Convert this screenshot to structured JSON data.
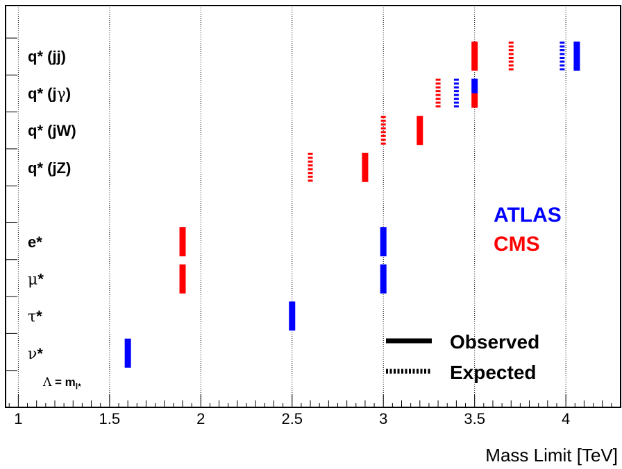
{
  "chart_data": {
    "type": "range-markers",
    "xlabel": "Mass Limit [TeV]",
    "xlim": [
      0.93,
      4.3
    ],
    "x_ticks": [
      1,
      1.5,
      2,
      2.5,
      3,
      3.5,
      4
    ],
    "x_tick_labels": [
      "1",
      "1.5",
      "2",
      "2.5",
      "3",
      "3.5",
      "4"
    ],
    "grid_x": true,
    "categories": [
      {
        "key": "qjj",
        "prefix": "q* (",
        "greek": "",
        "suffix": "jj)",
        "font": "bold",
        "row": 0
      },
      {
        "key": "qjg",
        "prefix": "q* (j",
        "greek": "γ",
        "suffix": ")",
        "font": "bold",
        "row": 1
      },
      {
        "key": "qjw",
        "prefix": "q* (jW)",
        "greek": "",
        "suffix": "",
        "font": "bold",
        "row": 2
      },
      {
        "key": "qjz",
        "prefix": "q* (jZ)",
        "greek": "",
        "suffix": "",
        "font": "bold",
        "row": 3
      },
      {
        "key": "e",
        "prefix": "e*",
        "greek": "",
        "suffix": "",
        "font": "bold",
        "row": 5
      },
      {
        "key": "mu",
        "prefix": "",
        "greek": "μ",
        "suffix": "*",
        "font": "greek",
        "row": 6
      },
      {
        "key": "tau",
        "prefix": "",
        "greek": "τ",
        "suffix": "*",
        "font": "greek",
        "row": 7
      },
      {
        "key": "nu",
        "prefix": "",
        "greek": "ν",
        "suffix": "*",
        "font": "greek",
        "row": 8
      }
    ],
    "series": [
      {
        "name": "ATLAS",
        "color": "#0000ff",
        "observed": {
          "qjj": 4.06,
          "qjg": 3.5,
          "e": 3.0,
          "mu": 3.0,
          "tau": 2.5,
          "nu": 1.6
        },
        "expected": {
          "qjj": 3.98,
          "qjg": 3.4
        }
      },
      {
        "name": "CMS",
        "color": "#ff0000",
        "observed": {
          "qjj": 3.5,
          "qjg": 3.5,
          "qjw": 3.2,
          "qjz": 2.9,
          "e": 1.9,
          "mu": 1.9
        },
        "expected": {
          "qjj": 3.7,
          "qjg": 3.3,
          "qjw": 3.0,
          "qjz": 2.6
        }
      }
    ],
    "legend": {
      "experiments": [
        "ATLAS",
        "CMS"
      ],
      "styles": [
        {
          "label": "Observed",
          "style": "solid"
        },
        {
          "label": "Expected",
          "style": "dashed"
        }
      ],
      "placement": "right"
    },
    "annotation": {
      "lambda": "Λ",
      "text": " = m",
      "subscript": "l*"
    }
  }
}
